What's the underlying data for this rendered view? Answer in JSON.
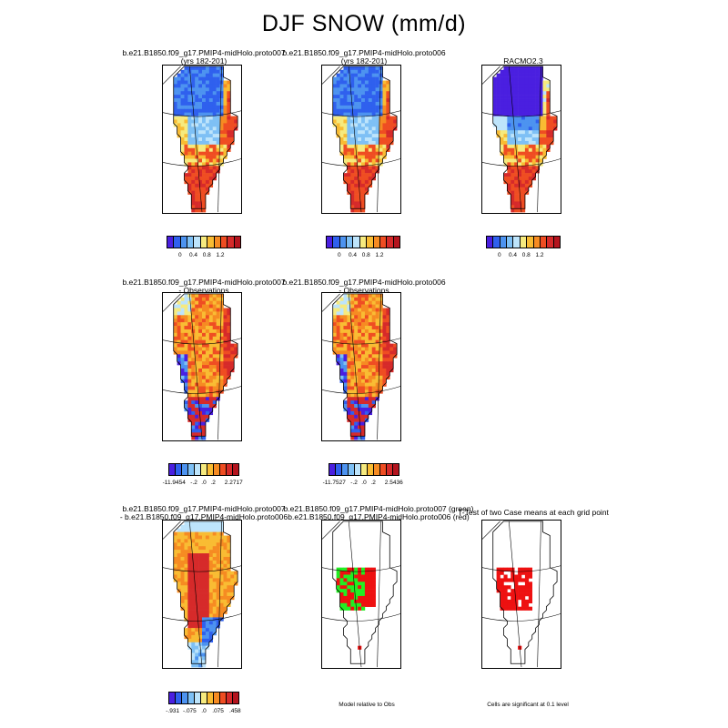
{
  "title": "DJF SNOW (mm/d)",
  "palette": [
    "#4a1fe0",
    "#2f60ee",
    "#4d93f0",
    "#7ec0f5",
    "#bde4fb",
    "#f6ea7e",
    "#f9bc33",
    "#f68b22",
    "#ef4d22",
    "#d62a2a",
    "#b4141e"
  ],
  "panels": [
    {
      "id": "p1",
      "title_lines": [
        "b.e21.B1850.f09_g17.PMIP4-midHolo.proto007",
        "(yrs 182-201)"
      ],
      "pattern": "model"
    },
    {
      "id": "p2",
      "title_lines": [
        "b.e21.B1850.f09_g17.PMIP4-midHolo.proto006",
        "(yrs 182-201)"
      ],
      "pattern": "model"
    },
    {
      "id": "p3",
      "title_lines": [
        "RACMO2.3"
      ],
      "pattern": "racmo"
    },
    {
      "id": "p4",
      "title_lines": [
        "b.e21.B1850.f09_g17.PMIP4-midHolo.proto007",
        "- Observations"
      ],
      "pattern": "diff_obs"
    },
    {
      "id": "p5",
      "title_lines": [
        "b.e21.B1850.f09_g17.PMIP4-midHolo.proto006",
        "- Observations"
      ],
      "pattern": "diff_obs"
    },
    {
      "id": "p6",
      "title_lines": [
        "b.e21.B1850.f09_g17.PMIP4-midHolo.proto007",
        "- b.e21.B1850.f09_g17.PMIP4-midHolo.proto006"
      ],
      "pattern": "diff_cases"
    },
    {
      "id": "p7",
      "title_lines": [
        "b.e21.B1850.f09_g17.PMIP4-midHolo.proto007 (green)",
        "b.e21.B1850.f09_g17.PMIP4-midHolo.proto006 (red)"
      ],
      "pattern": "compare"
    },
    {
      "id": "p8",
      "title_lines": [
        "T-Test of two Case means at each grid point"
      ],
      "pattern": "ttest"
    }
  ],
  "colorbars": [
    {
      "id": "cb1",
      "labels": [
        "0",
        "0.4",
        "0.8",
        "1.2"
      ]
    },
    {
      "id": "cb2",
      "labels": [
        "0",
        "0.4",
        "0.8",
        "1.2"
      ]
    },
    {
      "id": "cb3",
      "labels": [
        "0",
        "0.4",
        "0.8",
        "1.2"
      ]
    },
    {
      "id": "cb4",
      "labels": [
        "-11.9454",
        "-.2",
        ".0",
        ".2",
        "2.2717"
      ]
    },
    {
      "id": "cb5",
      "labels": [
        "-11.7527",
        "-.2",
        ".0",
        ".2",
        "2.5436"
      ]
    },
    {
      "id": "cb6",
      "labels": [
        "-.931",
        "-.075",
        ".0",
        ".075",
        ".458"
      ]
    }
  ],
  "notes": {
    "compare": "Model relative to Obs",
    "ttest": "Cells are significant at 0.1 level"
  },
  "chart_data": {
    "type": "heatmap",
    "title": "DJF SNOW (mm/d)",
    "panels": [
      {
        "title": "b.e21.B1850.f09_g17.PMIP4-midHolo.proto007 (yrs 182-201)",
        "colorbar_ticks": [
          0,
          0.4,
          0.8,
          1.2
        ]
      },
      {
        "title": "b.e21.B1850.f09_g17.PMIP4-midHolo.proto006 (yrs 182-201)",
        "colorbar_ticks": [
          0,
          0.4,
          0.8,
          1.2
        ]
      },
      {
        "title": "RACMO2.3",
        "colorbar_ticks": [
          0,
          0.4,
          0.8,
          1.2
        ]
      },
      {
        "title": "b.e21.B1850.f09_g17.PMIP4-midHolo.proto007 - Observations",
        "colorbar_range": [
          -11.9454,
          2.2717
        ],
        "colorbar_ticks": [
          -0.2,
          0.0,
          0.2
        ]
      },
      {
        "title": "b.e21.B1850.f09_g17.PMIP4-midHolo.proto006 - Observations",
        "colorbar_range": [
          -11.7527,
          2.5436
        ],
        "colorbar_ticks": [
          -0.2,
          0.0,
          0.2
        ]
      },
      {
        "title": "b.e21.B1850.f09_g17.PMIP4-midHolo.proto007 - b.e21.B1850.f09_g17.PMIP4-midHolo.proto006",
        "colorbar_range": [
          -0.931,
          0.458
        ],
        "colorbar_ticks": [
          -0.075,
          0.0,
          0.075
        ]
      },
      {
        "title": "b.e21.B1850.f09_g17.PMIP4-midHolo.proto007 (green) b.e21.B1850.f09_g17.PMIP4-midHolo.proto006 (red)",
        "note": "Model relative to Obs"
      },
      {
        "title": "T-Test of two Case means at each grid point",
        "note": "Cells are significant at 0.1 level"
      }
    ]
  }
}
